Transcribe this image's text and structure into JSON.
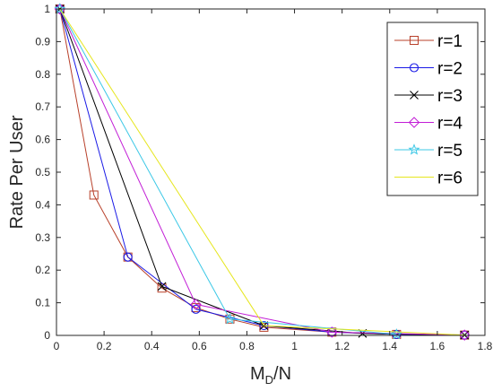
{
  "chart_data": {
    "type": "line",
    "xlabel": {
      "main": "M",
      "sub": "D",
      "rest": "/N"
    },
    "ylabel": "Rate Per User",
    "xlim": [
      0,
      1.8
    ],
    "ylim": [
      0,
      1
    ],
    "xticks": [
      0,
      0.2,
      0.4,
      0.6,
      0.8,
      1,
      1.2,
      1.4,
      1.6,
      1.8
    ],
    "xtick_labels": [
      "0",
      "0.2",
      "0.4",
      "0.6",
      "0.8",
      "1",
      "1.2",
      "1.4",
      "1.6",
      "1.8"
    ],
    "yticks": [
      0,
      0.1,
      0.2,
      0.3,
      0.4,
      0.5,
      0.6,
      0.7,
      0.8,
      0.9,
      1
    ],
    "ytick_labels": [
      "0",
      "0.1",
      "0.2",
      "0.3",
      "0.4",
      "0.5",
      "0.6",
      "0.7",
      "0.8",
      "0.9",
      "1"
    ],
    "grid": false,
    "legend_position": "top-right",
    "series": [
      {
        "name": "r=1",
        "color": "#b8402a",
        "marker": "square",
        "x": [
          0.0143,
          0.1571,
          0.3,
          0.4429,
          0.5857,
          0.7286,
          0.8714,
          1.1571,
          1.4286,
          1.7143
        ],
        "y": [
          1,
          0.43,
          0.24,
          0.145,
          0.085,
          0.05,
          0.025,
          0.01,
          0.003,
          0.001
        ]
      },
      {
        "name": "r=2",
        "color": "#1a1ae6",
        "marker": "circle",
        "x": [
          0.0143,
          0.3,
          0.5857,
          0.8714,
          1.1571,
          1.4286,
          1.7143
        ],
        "y": [
          1,
          0.24,
          0.08,
          0.03,
          0.01,
          0.003,
          0.001
        ]
      },
      {
        "name": "r=3",
        "color": "#000000",
        "marker": "x",
        "x": [
          0.0143,
          0.4429,
          0.8714,
          1.2857,
          1.7143
        ],
        "y": [
          1,
          0.15,
          0.03,
          0.006,
          0.001
        ]
      },
      {
        "name": "r=4",
        "color": "#c21ed6",
        "marker": "diamond",
        "x": [
          0.0143,
          0.5857,
          1.1571,
          1.7143
        ],
        "y": [
          1,
          0.095,
          0.01,
          0.001
        ]
      },
      {
        "name": "r=5",
        "color": "#3cc8e6",
        "marker": "star",
        "x": [
          0.0143,
          0.7286,
          1.4286
        ],
        "y": [
          1,
          0.05,
          0.003
        ]
      },
      {
        "name": "r=6",
        "color": "#e6e61e",
        "marker": "none",
        "x": [
          0.0143,
          0.8714,
          1.7143
        ],
        "y": [
          1,
          0.03,
          0.001
        ]
      }
    ]
  }
}
